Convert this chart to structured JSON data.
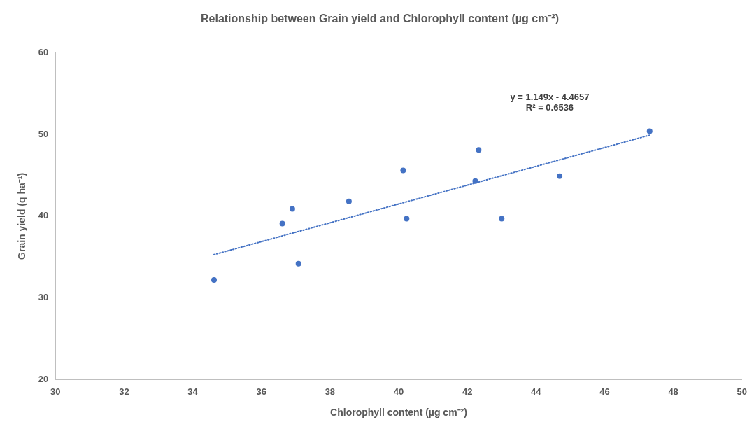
{
  "chart_data": {
    "type": "scatter",
    "title": "Relationship between Grain yield and Chlorophyll content (µg cm⁻²)",
    "xlabel": "Chlorophyll content (µg cm⁻²)",
    "ylabel": "Grain yield (q ha⁻¹)",
    "xlim": [
      30,
      50
    ],
    "xticks": [
      30,
      32,
      34,
      36,
      38,
      40,
      42,
      44,
      46,
      48,
      50
    ],
    "ylim": [
      20,
      60
    ],
    "yticks": [
      20,
      30,
      40,
      50,
      60
    ],
    "grid": false,
    "legend": false,
    "marker": "circle",
    "series": [
      {
        "color": "#4472c4",
        "x": [
          34.62,
          36.61,
          36.9,
          37.08,
          38.55,
          40.13,
          40.23,
          42.23,
          42.33,
          43.0,
          44.69,
          47.31
        ],
        "values": [
          32.2,
          39.1,
          40.9,
          34.2,
          41.8,
          45.6,
          39.7,
          44.3,
          48.1,
          39.7,
          44.9,
          50.4
        ]
      },
      {
        "type": "line",
        "color": "#4472c4",
        "line_style": "dotted",
        "marker": "none",
        "x": [
          34.62,
          47.31
        ],
        "values": [
          35.3,
          49.9
        ]
      }
    ],
    "annotations": [
      "y = 1.149x - 4.4657",
      "R² = 0.6536"
    ]
  }
}
